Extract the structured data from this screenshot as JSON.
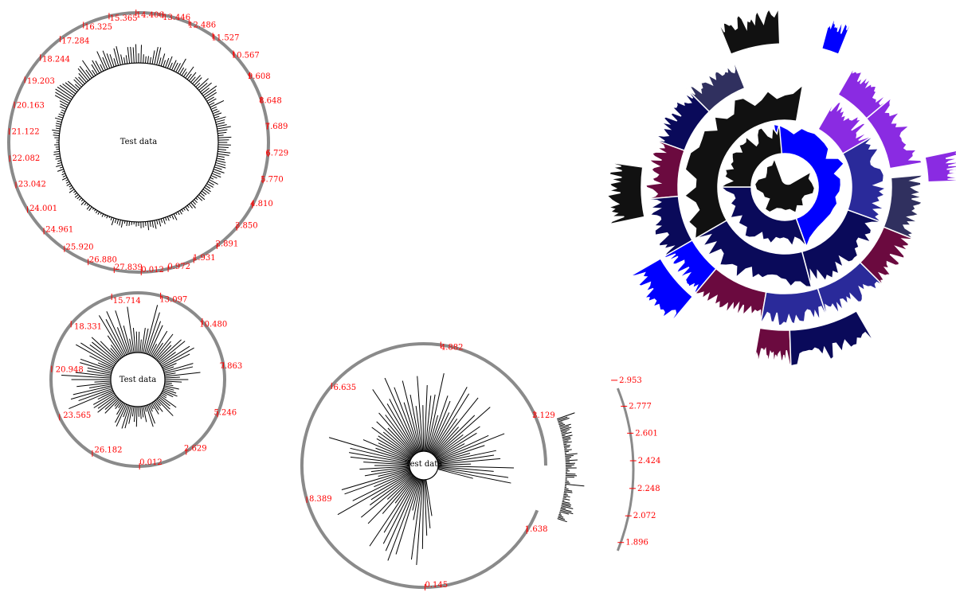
{
  "chart_data": [
    {
      "type": "radial-histogram",
      "center_label": "Test data",
      "tick_labels": [
        "0.012",
        "0.972",
        "1.931",
        "2.891",
        "3.850",
        "4.810",
        "5.770",
        "6.729",
        "7.689",
        "8.648",
        "9.608",
        "10.567",
        "11.527",
        "12.486",
        "13.446",
        "14.406",
        "15.365",
        "16.325",
        "17.284",
        "18.244",
        "19.203",
        "20.163",
        "21.122",
        "22.082",
        "23.042",
        "24.001",
        "24.961",
        "25.920",
        "26.880",
        "27.839"
      ],
      "range": [
        0.012,
        28.799
      ]
    },
    {
      "type": "radial-histogram",
      "center_label": "Test data",
      "tick_labels": [
        "0.012",
        "2.629",
        "5.246",
        "7.863",
        "10.480",
        "13.097",
        "15.714",
        "18.331",
        "20.948",
        "23.565",
        "26.182"
      ],
      "range": [
        0.012,
        28.799
      ]
    },
    {
      "type": "radial-histogram",
      "center_label": "Test data",
      "tick_labels": [
        "0.145",
        "1.638",
        "3.129",
        "4.882",
        "6.635",
        "8.389"
      ],
      "range": [
        0.145,
        10.142
      ]
    },
    {
      "type": "arc-axis",
      "tick_labels": [
        "1.896",
        "2.072",
        "2.248",
        "2.424",
        "2.601",
        "2.777",
        "2.953"
      ],
      "range": [
        1.896,
        2.953
      ]
    },
    {
      "type": "sunburst-histogram",
      "colors": {
        "black": "#111111",
        "navy": "#0a0a5a",
        "darkblue": "#1e1e7a",
        "blue": "#0000ff",
        "mediumblue": "#2a2a9a",
        "violet": "#8a2be2",
        "maroon": "#6b0a3f",
        "slate": "#30305f",
        "brightblue": "#1010d0"
      }
    }
  ]
}
